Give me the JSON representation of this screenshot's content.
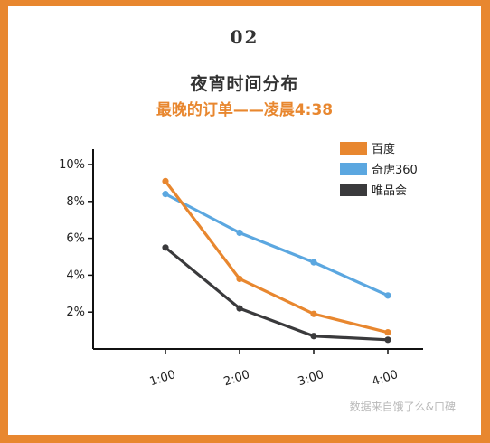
{
  "header": {
    "number": "02",
    "title": "夜宵时间分布",
    "subtitle": "最晚的订单——凌晨4:38"
  },
  "watermark": "数据来自饿了么&口碑",
  "colors": {
    "frame": "#e8872f",
    "baidu": "#e8872f",
    "qihoo": "#5ba7e0",
    "vip": "#3a3a3c"
  },
  "chart_data": {
    "type": "line",
    "categories": [
      "1:00",
      "2:00",
      "3:00",
      "4:00"
    ],
    "y_ticks": [
      "2%",
      "4%",
      "6%",
      "8%",
      "10%"
    ],
    "y_tick_values": [
      2,
      4,
      6,
      8,
      10
    ],
    "ylim": [
      0,
      10.5
    ],
    "y_unit": "%",
    "grid": false,
    "legend_position": "top-right",
    "series": [
      {
        "name": "百度",
        "color": "#e8872f",
        "values": [
          9.1,
          3.8,
          1.9,
          0.9
        ]
      },
      {
        "name": "奇虎360",
        "color": "#5ba7e0",
        "values": [
          8.4,
          6.3,
          4.7,
          2.9
        ]
      },
      {
        "name": "唯品会",
        "color": "#3a3a3c",
        "values": [
          5.5,
          2.2,
          0.7,
          0.5
        ]
      }
    ]
  }
}
